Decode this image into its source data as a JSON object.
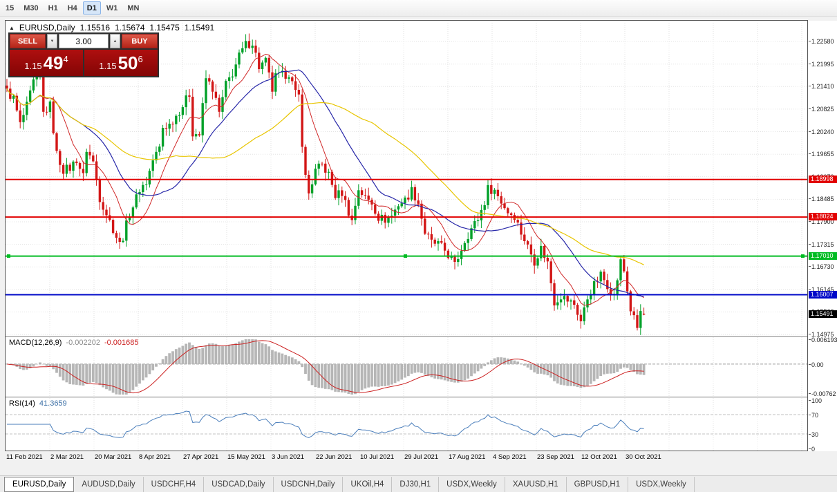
{
  "toolbar": {
    "timeframes": [
      {
        "label": "15",
        "active": false
      },
      {
        "label": "M30",
        "active": false
      },
      {
        "label": "H1",
        "active": false
      },
      {
        "label": "H4",
        "active": false
      },
      {
        "label": "D1",
        "active": true
      },
      {
        "label": "W1",
        "active": false
      },
      {
        "label": "MN",
        "active": false
      }
    ]
  },
  "quote_header": {
    "symbol": "EURUSD,Daily",
    "open": "1.15516",
    "high": "1.15674",
    "low": "1.15475",
    "close": "1.15491"
  },
  "one_click": {
    "sell_label": "SELL",
    "buy_label": "BUY",
    "volume": "3.00",
    "sell_price": {
      "prefix": "1.15",
      "big": "49",
      "sup": "4"
    },
    "buy_price": {
      "prefix": "1.15",
      "big": "50",
      "sup": "6"
    },
    "icons": {
      "volume_down": "▼",
      "volume_up": "▲",
      "collapse": "▲"
    }
  },
  "colors": {
    "bull": "#00a028",
    "bear": "#d21616",
    "ma_fast": "#d02828",
    "ma_mid": "#2626a8",
    "ma_slow": "#e8c500",
    "macd_histogram": "#b6b6b6",
    "macd_signal": "#cc2222",
    "rsi_line": "#4a7ebb",
    "level_red": "#e20000",
    "level_green": "#00bb22",
    "level_blue": "#0008c8",
    "current_price_bg": "#000000",
    "grid": "#e3e3e3"
  },
  "price_scale": {
    "ticks": [
      "1.22580",
      "1.21995",
      "1.21410",
      "1.20825",
      "1.20240",
      "1.19655",
      "1.19070",
      "1.18485",
      "1.17900",
      "1.17315",
      "1.16730",
      "1.16145",
      "1.15560",
      "1.14975"
    ]
  },
  "levels": [
    {
      "name": "resistance-1",
      "price": 1.18998,
      "label": "1.18998",
      "color": "#e20000",
      "selected": false
    },
    {
      "name": "resistance-2",
      "price": 1.18024,
      "label": "1.18024",
      "color": "#e20000",
      "selected": false
    },
    {
      "name": "support-green",
      "price": 1.1701,
      "label": "1.17010",
      "color": "#00bb22",
      "selected": true
    },
    {
      "name": "support-blue",
      "price": 1.16007,
      "label": "1.16007",
      "color": "#0008c8",
      "selected": false
    }
  ],
  "current_price": {
    "value": 1.15491,
    "label": "1.15491"
  },
  "macd": {
    "label": "MACD(12,26,9)",
    "value1": "-0.002202",
    "value2": "-0.001685",
    "scale_top": "0.006193",
    "scale_zero": "0.00",
    "scale_bottom": "-0.00762"
  },
  "rsi": {
    "label": "RSI(14)",
    "value": "41.3659",
    "scale": [
      "100",
      "70",
      "30",
      "0"
    ]
  },
  "x_axis": {
    "labels": [
      "11 Feb 2021",
      "2 Mar 2021",
      "20 Mar 2021",
      "8 Apr 2021",
      "27 Apr 2021",
      "15 May 2021",
      "3 Jun 2021",
      "22 Jun 2021",
      "10 Jul 2021",
      "29 Jul 2021",
      "17 Aug 2021",
      "4 Sep 2021",
      "23 Sep 2021",
      "12 Oct 2021",
      "30 Oct 2021"
    ]
  },
  "tabs": [
    {
      "label": "EURUSD,Daily",
      "active": true
    },
    {
      "label": "AUDUSD,Daily",
      "active": false
    },
    {
      "label": "USDCHF,H4",
      "active": false
    },
    {
      "label": "USDCAD,Daily",
      "active": false
    },
    {
      "label": "USDCNH,Daily",
      "active": false
    },
    {
      "label": "UKOil,H4",
      "active": false
    },
    {
      "label": "DJ30,H1",
      "active": false
    },
    {
      "label": "USDX,Weekly",
      "active": false
    },
    {
      "label": "XAUUSD,H1",
      "active": false
    },
    {
      "label": "GBPUSD,H1",
      "active": false
    },
    {
      "label": "USDX,Weekly",
      "active": false
    }
  ],
  "chart_data": [
    {
      "type": "candlestick",
      "title": "EURUSD Daily",
      "bar_count": 193,
      "y_range": [
        1.1494,
        1.2312
      ],
      "x_labels": [
        "11 Feb 2021",
        "2 Mar 2021",
        "20 Mar 2021",
        "8 Apr 2021",
        "27 Apr 2021",
        "15 May 2021",
        "3 Jun 2021",
        "22 Jun 2021",
        "10 Jul 2021",
        "29 Jul 2021",
        "17 Aug 2021",
        "4 Sep 2021",
        "23 Sep 2021",
        "12 Oct 2021",
        "30 Oct 2021"
      ],
      "price_anchors": [
        [
          0,
          1.2128
        ],
        [
          2,
          1.211
        ],
        [
          4,
          1.2042
        ],
        [
          6,
          1.209
        ],
        [
          8,
          1.2152
        ],
        [
          10,
          1.2176
        ],
        [
          11,
          1.2072
        ],
        [
          13,
          1.2092
        ],
        [
          15,
          1.1966
        ],
        [
          17,
          1.1925
        ],
        [
          19,
          1.193
        ],
        [
          21,
          1.1952
        ],
        [
          23,
          1.1908
        ],
        [
          24,
          1.1978
        ],
        [
          26,
          1.1945
        ],
        [
          28,
          1.1852
        ],
        [
          30,
          1.1812
        ],
        [
          32,
          1.1772
        ],
        [
          34,
          1.1732
        ],
        [
          35,
          1.1752
        ],
        [
          37,
          1.1812
        ],
        [
          39,
          1.1852
        ],
        [
          40,
          1.1876
        ],
        [
          42,
          1.1892
        ],
        [
          44,
          1.195
        ],
        [
          46,
          1.1982
        ],
        [
          47,
          1.2035
        ],
        [
          49,
          1.2042
        ],
        [
          51,
          1.2066
        ],
        [
          53,
          1.2092
        ],
        [
          55,
          1.2122
        ],
        [
          56,
          1.2022
        ],
        [
          58,
          1.2016
        ],
        [
          60,
          1.2162
        ],
        [
          62,
          1.2136
        ],
        [
          64,
          1.2072
        ],
        [
          66,
          1.2146
        ],
        [
          68,
          1.2176
        ],
        [
          70,
          1.222
        ],
        [
          72,
          1.225
        ],
        [
          74,
          1.2256
        ],
        [
          76,
          1.2192
        ],
        [
          78,
          1.2206
        ],
        [
          80,
          1.2132
        ],
        [
          81,
          1.2166
        ],
        [
          83,
          1.217
        ],
        [
          85,
          1.2176
        ],
        [
          87,
          1.2122
        ],
        [
          88,
          1.2116
        ],
        [
          89,
          1.1996
        ],
        [
          90,
          1.1906
        ],
        [
          91,
          1.1864
        ],
        [
          93,
          1.1922
        ],
        [
          95,
          1.1938
        ],
        [
          97,
          1.1912
        ],
        [
          99,
          1.1858
        ],
        [
          101,
          1.1866
        ],
        [
          103,
          1.1816
        ],
        [
          104,
          1.1792
        ],
        [
          106,
          1.1876
        ],
        [
          108,
          1.1852
        ],
        [
          110,
          1.184
        ],
        [
          112,
          1.1802
        ],
        [
          114,
          1.1796
        ],
        [
          116,
          1.1806
        ],
        [
          118,
          1.1836
        ],
        [
          120,
          1.1846
        ],
        [
          122,
          1.1872
        ],
        [
          124,
          1.184
        ],
        [
          126,
          1.1762
        ],
        [
          128,
          1.1736
        ],
        [
          130,
          1.1732
        ],
        [
          132,
          1.1716
        ],
        [
          134,
          1.1692
        ],
        [
          135,
          1.1676
        ],
        [
          136,
          1.1698
        ],
        [
          138,
          1.1742
        ],
        [
          140,
          1.1772
        ],
        [
          142,
          1.1798
        ],
        [
          144,
          1.1842
        ],
        [
          145,
          1.1876
        ],
        [
          147,
          1.1872
        ],
        [
          149,
          1.1842
        ],
        [
          151,
          1.1816
        ],
        [
          153,
          1.1806
        ],
        [
          155,
          1.1762
        ],
        [
          157,
          1.1726
        ],
        [
          159,
          1.1688
        ],
        [
          161,
          1.1722
        ],
        [
          163,
          1.1684
        ],
        [
          165,
          1.1582
        ],
        [
          167,
          1.1598
        ],
        [
          169,
          1.1586
        ],
        [
          171,
          1.1576
        ],
        [
          173,
          1.1532
        ],
        [
          175,
          1.1592
        ],
        [
          177,
          1.1626
        ],
        [
          179,
          1.1652
        ],
        [
          181,
          1.1626
        ],
        [
          183,
          1.1598
        ],
        [
          185,
          1.1686
        ],
        [
          186,
          1.1662
        ],
        [
          188,
          1.1562
        ],
        [
          190,
          1.1514
        ],
        [
          191,
          1.1556
        ],
        [
          192,
          1.15491
        ]
      ],
      "last_bar": {
        "open": 1.15516,
        "high": 1.15674,
        "low": 1.15475,
        "close": 1.15491
      },
      "moving_averages": [
        {
          "period": 10,
          "color": "#d02828"
        },
        {
          "period": 24,
          "color": "#2626a8"
        },
        {
          "period": 52,
          "color": "#e8c500"
        }
      ],
      "horizontal_lines": [
        1.18998,
        1.18024,
        1.1701,
        1.16007
      ]
    },
    {
      "type": "macd",
      "label": "MACD(12,26,9)",
      "params": [
        12,
        26,
        9
      ],
      "current": [
        -0.002202,
        -0.001685
      ],
      "y_range": [
        -0.00762,
        0.006193
      ]
    },
    {
      "type": "rsi",
      "label": "RSI(14)",
      "period": 14,
      "current": 41.3659,
      "y_range": [
        0,
        100
      ],
      "levels": [
        30,
        70
      ]
    }
  ]
}
